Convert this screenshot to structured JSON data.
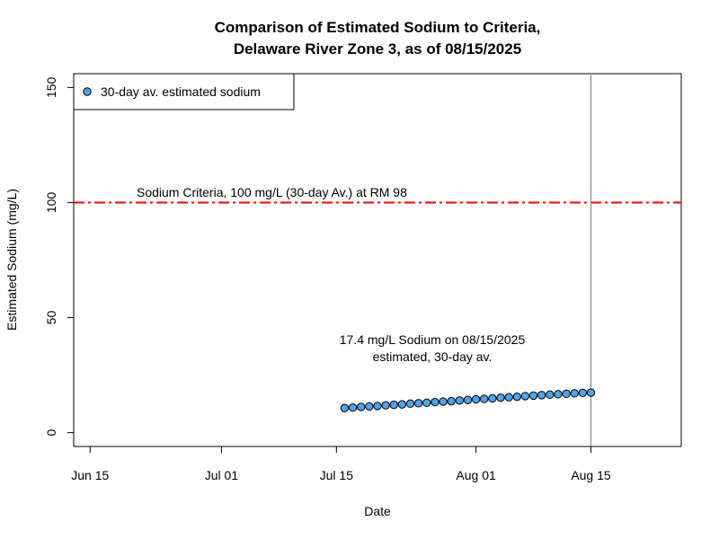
{
  "chart_data": {
    "type": "scatter",
    "title_lines": [
      "Comparison of Estimated Sodium to Criteria,",
      "Delaware River Zone 3, as of 08/15/2025"
    ],
    "xlabel": "Date",
    "ylabel": "Estimated Sodium (mg/L)",
    "x_ticks": [
      {
        "date": "2025-06-15",
        "label": "Jun 15"
      },
      {
        "date": "2025-07-01",
        "label": "Jul 01"
      },
      {
        "date": "2025-07-15",
        "label": "Jul 15"
      },
      {
        "date": "2025-08-01",
        "label": "Aug 01"
      },
      {
        "date": "2025-08-15",
        "label": "Aug 15"
      }
    ],
    "y_ticks": [
      0,
      50,
      100,
      150
    ],
    "xlim": [
      "2025-06-13",
      "2025-08-26"
    ],
    "ylim": [
      -6,
      156
    ],
    "grid": false,
    "legend": {
      "position": "top-left",
      "label": "30-day av. estimated sodium"
    },
    "criteria_line": {
      "value": 100,
      "label": "Sodium Criteria, 100 mg/L (30-day Av.) at RM 98",
      "color": "#ff0000"
    },
    "current_date_line": {
      "date": "2025-08-15",
      "color": "#808080"
    },
    "annotation_lines": [
      "17.4 mg/L Sodium on 08/15/2025",
      "estimated, 30-day av."
    ],
    "point_color": "#4fa3e8",
    "series": [
      {
        "points": [
          {
            "x": "2025-07-16",
            "y": 10.7
          },
          {
            "x": "2025-07-17",
            "y": 10.9
          },
          {
            "x": "2025-07-18",
            "y": 11.2
          },
          {
            "x": "2025-07-19",
            "y": 11.4
          },
          {
            "x": "2025-07-20",
            "y": 11.6
          },
          {
            "x": "2025-07-21",
            "y": 11.9
          },
          {
            "x": "2025-07-22",
            "y": 12.1
          },
          {
            "x": "2025-07-23",
            "y": 12.3
          },
          {
            "x": "2025-07-24",
            "y": 12.6
          },
          {
            "x": "2025-07-25",
            "y": 12.8
          },
          {
            "x": "2025-07-26",
            "y": 13.0
          },
          {
            "x": "2025-07-27",
            "y": 13.3
          },
          {
            "x": "2025-07-28",
            "y": 13.5
          },
          {
            "x": "2025-07-29",
            "y": 13.7
          },
          {
            "x": "2025-07-30",
            "y": 14.0
          },
          {
            "x": "2025-07-31",
            "y": 14.2
          },
          {
            "x": "2025-08-01",
            "y": 14.5
          },
          {
            "x": "2025-08-02",
            "y": 14.7
          },
          {
            "x": "2025-08-03",
            "y": 14.9
          },
          {
            "x": "2025-08-04",
            "y": 15.2
          },
          {
            "x": "2025-08-05",
            "y": 15.4
          },
          {
            "x": "2025-08-06",
            "y": 15.6
          },
          {
            "x": "2025-08-07",
            "y": 15.9
          },
          {
            "x": "2025-08-08",
            "y": 16.1
          },
          {
            "x": "2025-08-09",
            "y": 16.3
          },
          {
            "x": "2025-08-10",
            "y": 16.5
          },
          {
            "x": "2025-08-11",
            "y": 16.7
          },
          {
            "x": "2025-08-12",
            "y": 16.9
          },
          {
            "x": "2025-08-13",
            "y": 17.1
          },
          {
            "x": "2025-08-14",
            "y": 17.3
          },
          {
            "x": "2025-08-15",
            "y": 17.4
          }
        ]
      }
    ]
  }
}
